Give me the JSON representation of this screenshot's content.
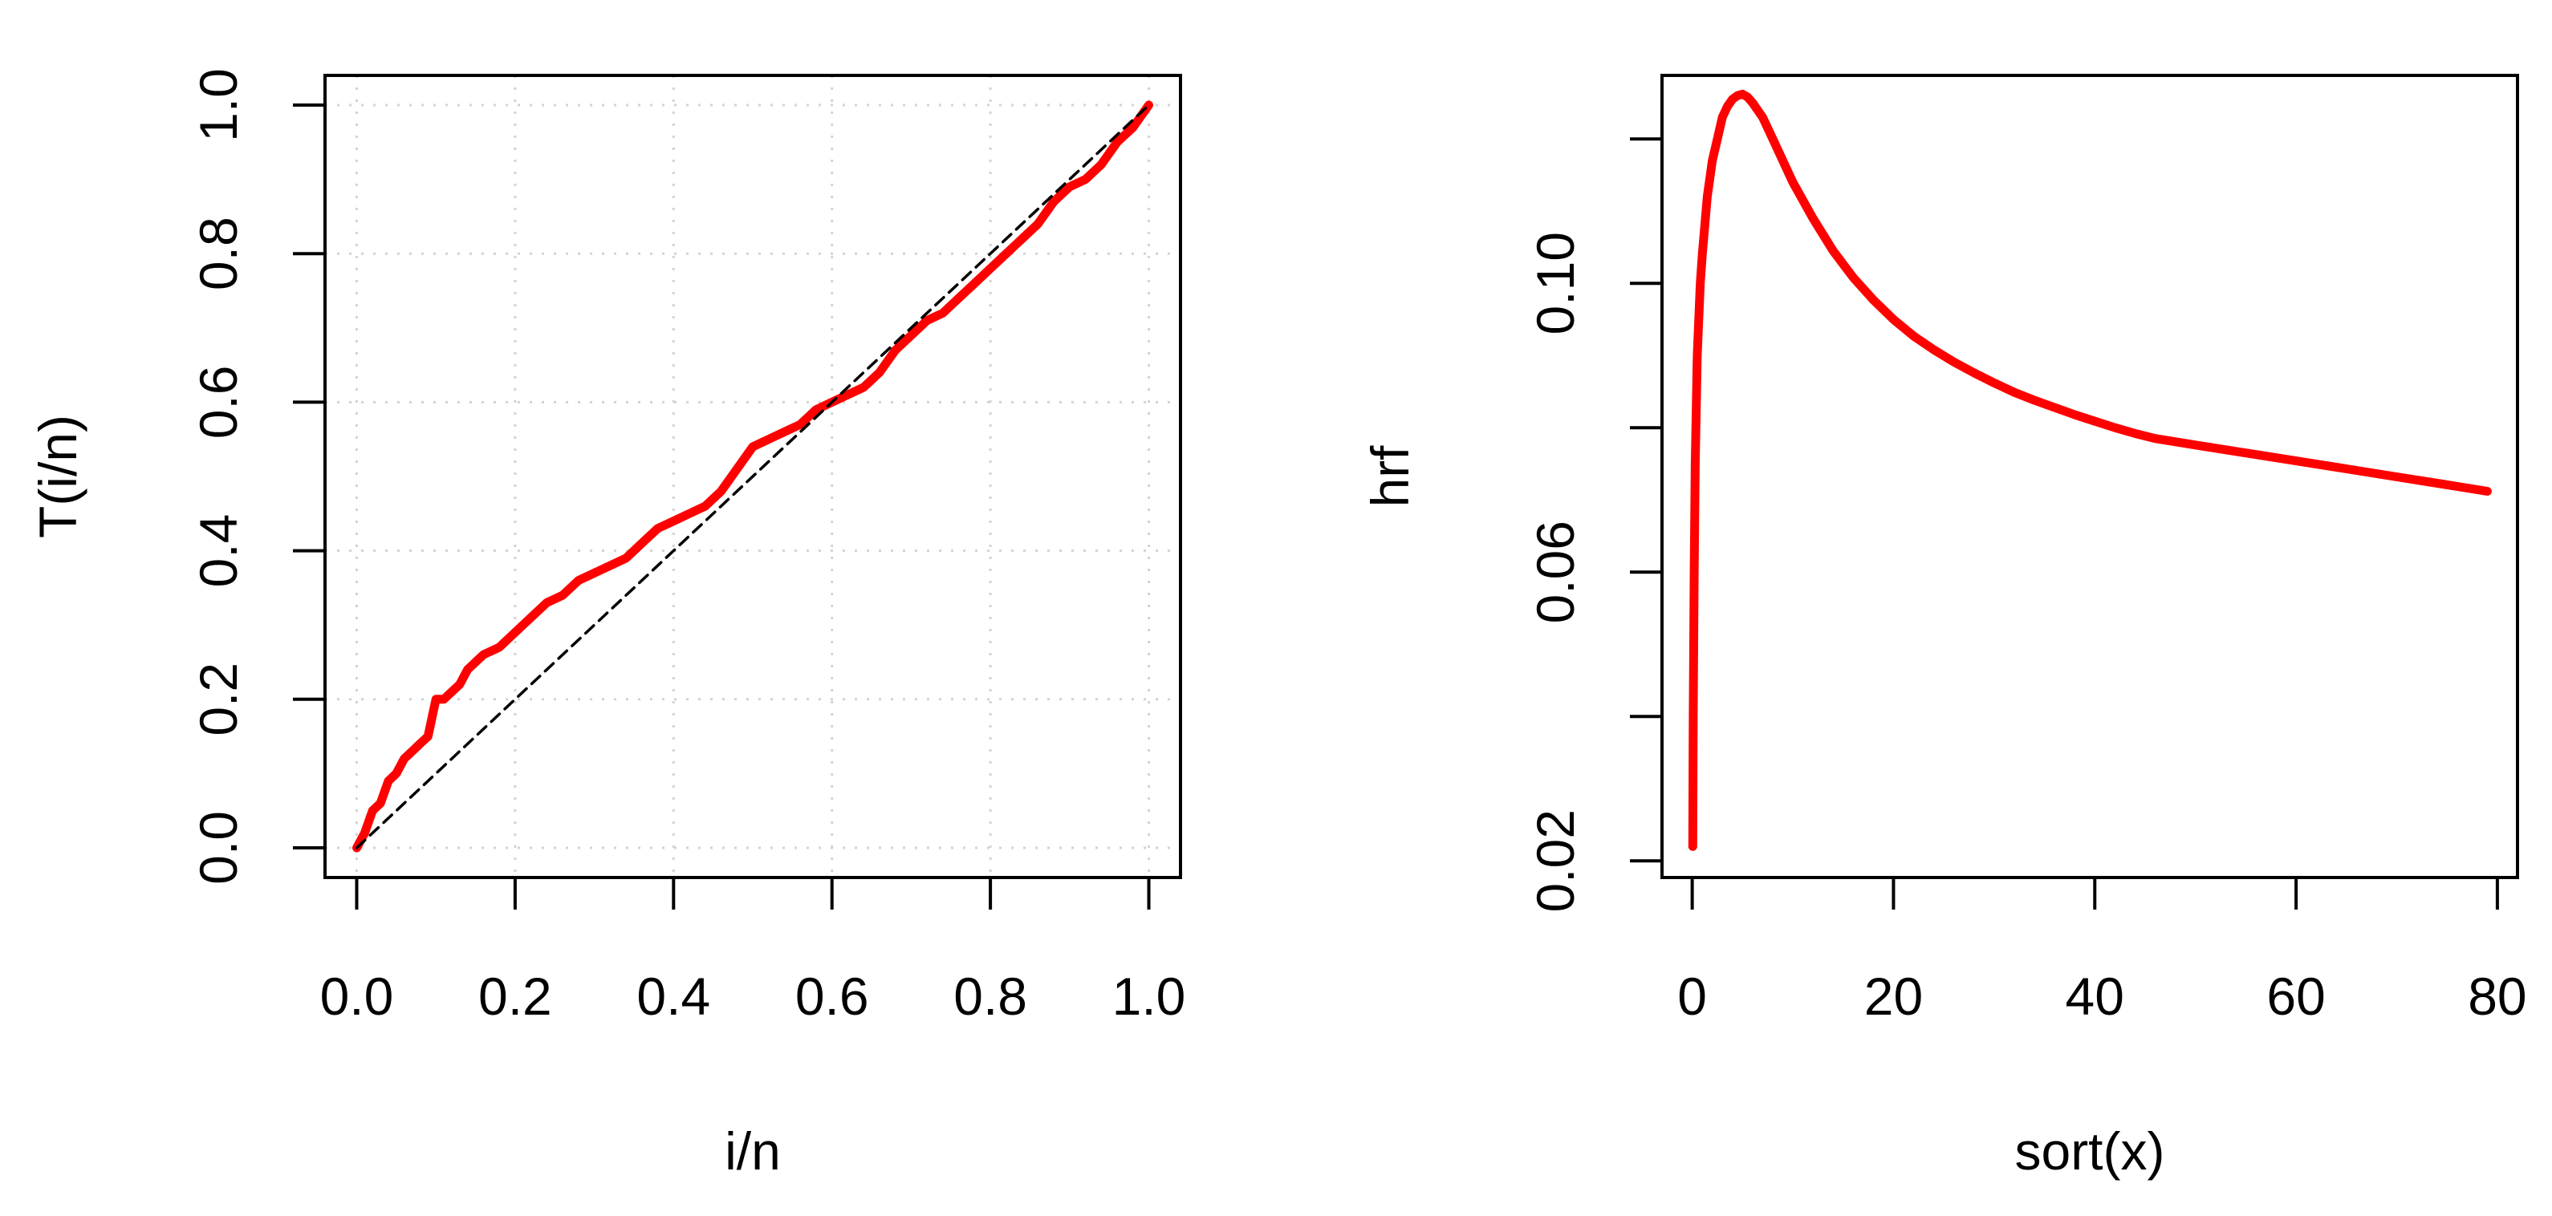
{
  "chart_data": [
    {
      "type": "line",
      "title": "",
      "xlabel": "i/n",
      "ylabel": "T(i/n)",
      "xlim": [
        -0.04,
        1.04
      ],
      "ylim": [
        -0.04,
        1.04
      ],
      "x_ticks": [
        0.0,
        0.2,
        0.4,
        0.6,
        0.8,
        1.0
      ],
      "x_tick_labels": [
        "0.0",
        "0.2",
        "0.4",
        "0.6",
        "0.8",
        "1.0"
      ],
      "y_ticks": [
        0.0,
        0.2,
        0.4,
        0.6,
        0.8,
        1.0
      ],
      "y_tick_labels": [
        "0.0",
        "0.2",
        "0.4",
        "0.6",
        "0.8",
        "1.0"
      ],
      "grid": true,
      "series": [
        {
          "style": "solid",
          "color": "#ff0000",
          "x": [
            0.0,
            0.01,
            0.02,
            0.03,
            0.04,
            0.05,
            0.06,
            0.07,
            0.08,
            0.09,
            0.1,
            0.11,
            0.12,
            0.13,
            0.14,
            0.15,
            0.16,
            0.18,
            0.2,
            0.22,
            0.24,
            0.26,
            0.28,
            0.3,
            0.32,
            0.34,
            0.36,
            0.38,
            0.4,
            0.42,
            0.44,
            0.46,
            0.48,
            0.5,
            0.52,
            0.54,
            0.56,
            0.58,
            0.6,
            0.62,
            0.64,
            0.66,
            0.68,
            0.7,
            0.72,
            0.74,
            0.76,
            0.78,
            0.8,
            0.82,
            0.84,
            0.86,
            0.88,
            0.9,
            0.92,
            0.94,
            0.96,
            0.98,
            1.0
          ],
          "y": [
            0.0,
            0.02,
            0.05,
            0.06,
            0.09,
            0.1,
            0.12,
            0.13,
            0.14,
            0.15,
            0.2,
            0.2,
            0.21,
            0.22,
            0.24,
            0.25,
            0.26,
            0.27,
            0.29,
            0.31,
            0.33,
            0.34,
            0.36,
            0.37,
            0.38,
            0.39,
            0.41,
            0.43,
            0.44,
            0.45,
            0.46,
            0.48,
            0.51,
            0.54,
            0.55,
            0.56,
            0.57,
            0.59,
            0.6,
            0.61,
            0.62,
            0.64,
            0.67,
            0.69,
            0.71,
            0.72,
            0.74,
            0.76,
            0.78,
            0.8,
            0.82,
            0.84,
            0.87,
            0.89,
            0.9,
            0.92,
            0.95,
            0.97,
            1.0
          ]
        },
        {
          "style": "dashed",
          "color": "#000000",
          "x": [
            0.0,
            1.0
          ],
          "y": [
            0.0,
            1.0
          ]
        }
      ]
    },
    {
      "type": "line",
      "title": "",
      "xlabel": "sort(x)",
      "ylabel": "hrf",
      "xlim": [
        -3,
        82
      ],
      "ylim": [
        0.0177,
        0.1288
      ],
      "x_ticks": [
        0,
        20,
        40,
        60,
        80
      ],
      "x_tick_labels": [
        "0",
        "20",
        "40",
        "60",
        "80"
      ],
      "y_ticks": [
        0.02,
        0.04,
        0.06,
        0.08,
        0.1,
        0.12
      ],
      "y_tick_labels": [
        "0.02",
        "",
        "0.06",
        "",
        "0.10",
        ""
      ],
      "grid": false,
      "series": [
        {
          "style": "solid",
          "color": "#ff0000",
          "x": [
            0.05,
            0.1,
            0.2,
            0.3,
            0.5,
            0.8,
            1.0,
            1.5,
            2.0,
            2.5,
            3.0,
            3.5,
            4.0,
            4.5,
            5.0,
            5.5,
            6.0,
            7.0,
            8.0,
            9.0,
            10.0,
            12.0,
            14.0,
            16.0,
            18.0,
            20.0,
            22.0,
            24.0,
            26.0,
            28.0,
            30.0,
            32.0,
            34.0,
            36.0,
            38.0,
            40.0,
            42.0,
            44.0,
            46.0,
            50.0,
            55.0,
            60.0,
            65.0,
            70.0,
            75.0,
            79.0
          ],
          "y": [
            0.022,
            0.04,
            0.06,
            0.075,
            0.09,
            0.1,
            0.104,
            0.112,
            0.117,
            0.12,
            0.123,
            0.1245,
            0.1255,
            0.126,
            0.1262,
            0.1258,
            0.125,
            0.123,
            0.12,
            0.117,
            0.114,
            0.109,
            0.1045,
            0.1008,
            0.0977,
            0.095,
            0.0927,
            0.0908,
            0.0891,
            0.0876,
            0.0862,
            0.0849,
            0.0838,
            0.0828,
            0.0818,
            0.0809,
            0.08,
            0.0792,
            0.0785,
            0.0776,
            0.0765,
            0.0754,
            0.0743,
            0.0732,
            0.0721,
            0.0712
          ]
        }
      ]
    }
  ]
}
